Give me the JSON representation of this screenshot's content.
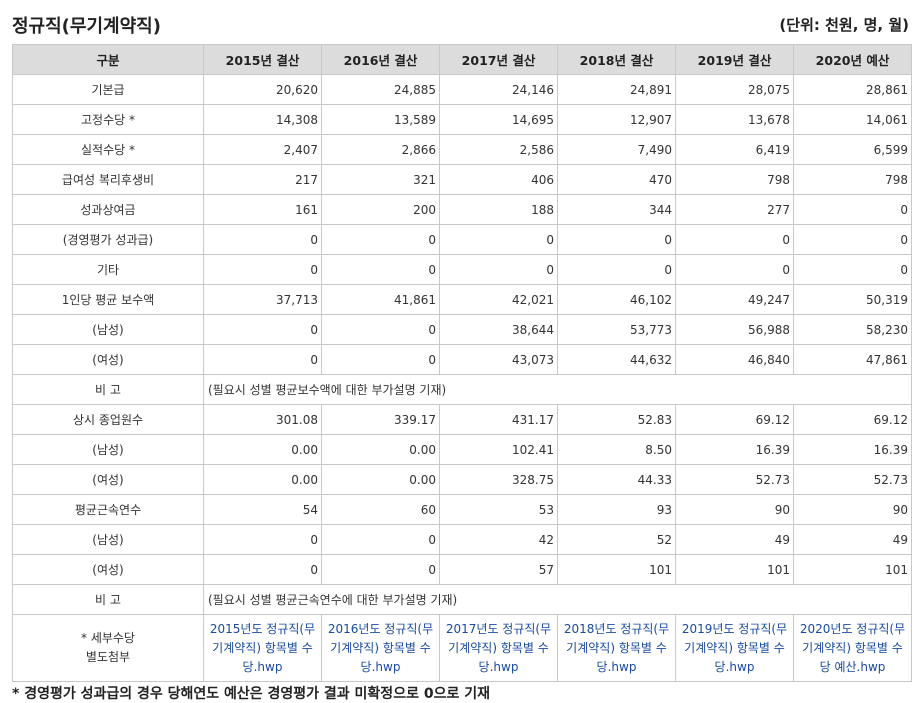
{
  "title": "정규직(무기계약직)",
  "unit": "(단위: 천원, 명, 월)",
  "header": [
    "구분",
    "2015년 결산",
    "2016년 결산",
    "2017년 결산",
    "2018년 결산",
    "2019년 결산",
    "2020년 예산"
  ],
  "rows": [
    {
      "label": "기본급",
      "values": [
        "20,620",
        "24,885",
        "24,146",
        "24,891",
        "28,075",
        "28,861"
      ]
    },
    {
      "label": "고정수당 *",
      "values": [
        "14,308",
        "13,589",
        "14,695",
        "12,907",
        "13,678",
        "14,061"
      ]
    },
    {
      "label": "실적수당 *",
      "values": [
        "2,407",
        "2,866",
        "2,586",
        "7,490",
        "6,419",
        "6,599"
      ]
    },
    {
      "label": "급여성 복리후생비",
      "values": [
        "217",
        "321",
        "406",
        "470",
        "798",
        "798"
      ]
    },
    {
      "label": "성과상여금",
      "values": [
        "161",
        "200",
        "188",
        "344",
        "277",
        "0"
      ]
    },
    {
      "label": "(경영평가 성과급)",
      "values": [
        "0",
        "0",
        "0",
        "0",
        "0",
        "0"
      ]
    },
    {
      "label": "기타",
      "values": [
        "0",
        "0",
        "0",
        "0",
        "0",
        "0"
      ]
    },
    {
      "label": "1인당 평균 보수액",
      "values": [
        "37,713",
        "41,861",
        "42,021",
        "46,102",
        "49,247",
        "50,319"
      ]
    },
    {
      "label": "(남성)",
      "values": [
        "0",
        "0",
        "38,644",
        "53,773",
        "56,988",
        "58,230"
      ]
    },
    {
      "label": "(여성)",
      "values": [
        "0",
        "0",
        "43,073",
        "44,632",
        "46,840",
        "47,861"
      ]
    },
    {
      "label": "비 고",
      "note": "(필요시 성별 평균보수액에 대한 부가설명 기재)"
    },
    {
      "label": "상시 종업원수",
      "values": [
        "301.08",
        "339.17",
        "431.17",
        "52.83",
        "69.12",
        "69.12"
      ]
    },
    {
      "label": "(남성)",
      "values": [
        "0.00",
        "0.00",
        "102.41",
        "8.50",
        "16.39",
        "16.39"
      ]
    },
    {
      "label": "(여성)",
      "values": [
        "0.00",
        "0.00",
        "328.75",
        "44.33",
        "52.73",
        "52.73"
      ]
    },
    {
      "label": "평균근속연수",
      "values": [
        "54",
        "60",
        "53",
        "93",
        "90",
        "90"
      ]
    },
    {
      "label": "(남성)",
      "values": [
        "0",
        "0",
        "42",
        "52",
        "49",
        "49"
      ]
    },
    {
      "label": "(여성)",
      "values": [
        "0",
        "0",
        "57",
        "101",
        "101",
        "101"
      ]
    },
    {
      "label": "비 고",
      "note": "(필요시 성별 평균근속연수에 대한 부가설명 기재)"
    }
  ],
  "attachments": {
    "label_line1": "* 세부수당",
    "label_line2": "별도첨부",
    "links": [
      "2015년도 정규직(무기계약직) 항목별 수당.hwp",
      "2016년도 정규직(무기계약직) 항목별 수당.hwp",
      "2017년도 정규직(무기계약직) 항목별 수당.hwp",
      "2018년도 정규직(무기계약직) 항목별 수당.hwp",
      "2019년도 정규직(무기계약직) 항목별 수당.hwp",
      "2020년도 정규직(무기계약직) 항목별 수당 예산.hwp"
    ]
  },
  "footnote": "* 경영평가 성과급의 경우 당해연도 예산은 경영평가 결과 미확정으로 0으로 기재"
}
